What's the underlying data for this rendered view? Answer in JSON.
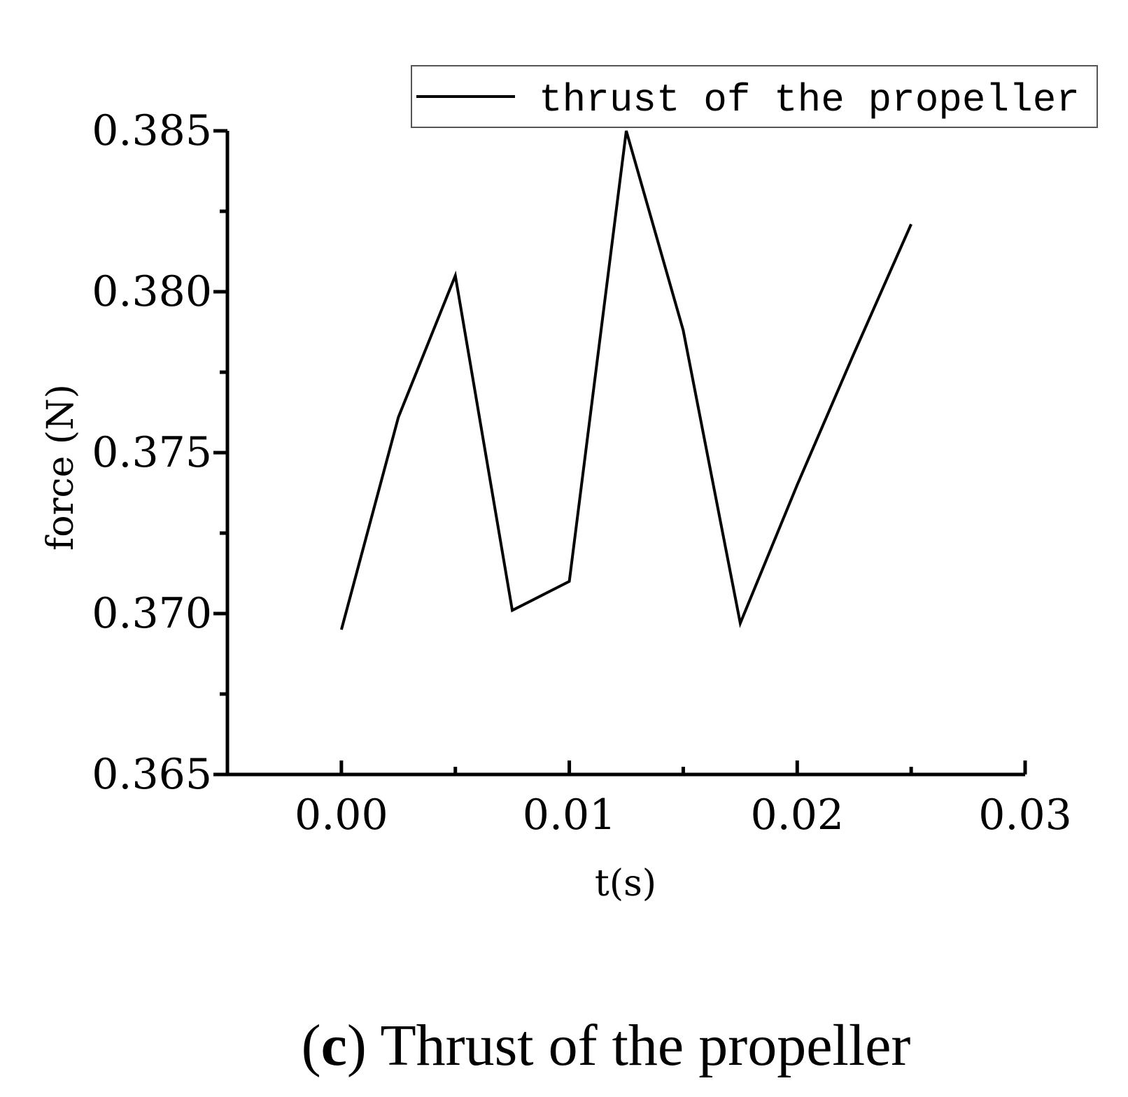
{
  "chart_data": {
    "type": "line",
    "xlabel": "t(s)",
    "ylabel": "force (N)",
    "xlim": [
      -0.005,
      0.03
    ],
    "ylim": [
      0.365,
      0.385
    ],
    "x_ticks": [
      0.0,
      0.01,
      0.02,
      0.03
    ],
    "x_tick_labels": [
      "0.00",
      "0.01",
      "0.02",
      "0.03"
    ],
    "y_ticks": [
      0.365,
      0.37,
      0.375,
      0.38,
      0.385
    ],
    "y_tick_labels": [
      "0.365",
      "0.370",
      "0.375",
      "0.380",
      "0.385"
    ],
    "grid": false,
    "legend_position": "top-right",
    "series": [
      {
        "name": "thrust of the propeller",
        "color": "#000000",
        "x": [
          0.0,
          0.0025,
          0.005,
          0.0075,
          0.01,
          0.0125,
          0.015,
          0.0175,
          0.02,
          0.0225,
          0.025
        ],
        "y": [
          0.3695,
          0.3761,
          0.3805,
          0.3701,
          0.371,
          0.385,
          0.3788,
          0.3697,
          0.374,
          0.3781,
          0.3821
        ]
      }
    ]
  },
  "caption": {
    "open_paren": "(",
    "letter": "c",
    "close_rest": ") Thrust of the propeller"
  }
}
